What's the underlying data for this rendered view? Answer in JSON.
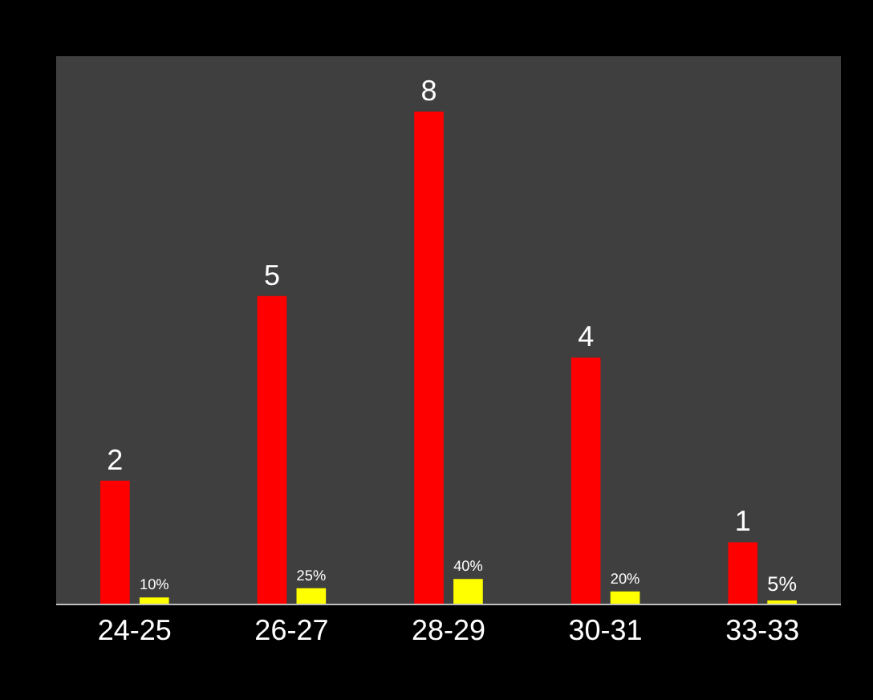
{
  "chart_data": {
    "type": "bar",
    "categories": [
      "24-25",
      "26-27",
      "28-29",
      "30-31",
      "33-33"
    ],
    "series": [
      {
        "color": "#ff0000",
        "values": [
          2,
          5,
          8,
          4,
          1
        ],
        "value_labels": [
          "2",
          "5",
          "8",
          "4",
          "1"
        ]
      },
      {
        "color": "#ffff00",
        "values": [
          0.1,
          0.25,
          0.4,
          0.2,
          0.05
        ],
        "value_labels": [
          "10%",
          "25%",
          "40%",
          "20%",
          "5%"
        ]
      }
    ],
    "ylim": [
      0,
      8.9
    ],
    "grid": false,
    "legend": false,
    "tick_labels": "x"
  }
}
